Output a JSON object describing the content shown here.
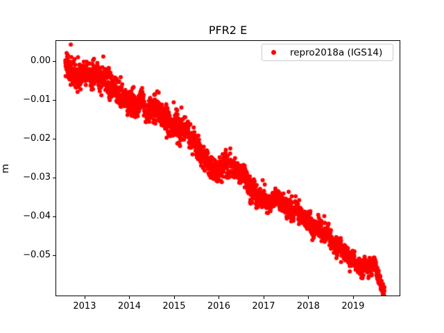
{
  "figure": {
    "background": "#ffffff"
  },
  "chart_data": {
    "type": "scatter",
    "title": "PFR2 E",
    "xlabel": "",
    "ylabel": "m",
    "grid": false,
    "xlim": [
      2012.35,
      2020.04
    ],
    "ylim": [
      -0.0603,
      0.0054
    ],
    "x_ticks": [
      2013,
      2014,
      2015,
      2016,
      2017,
      2018,
      2019
    ],
    "y_ticks": [
      0,
      -0.01,
      -0.02,
      -0.03,
      -0.04,
      -0.05
    ],
    "y_tick_labels": [
      "0.00",
      "−0.01",
      "−0.02",
      "−0.03",
      "−0.04",
      "−0.05"
    ],
    "legend": {
      "position": "upper right",
      "entries": [
        {
          "label": "repro2018a (IGS14)",
          "marker": "dot-marker",
          "color": "#ff0000"
        }
      ]
    },
    "series": [
      {
        "name": "repro2018a (IGS14)",
        "color": "#ff0000",
        "marker": "circle",
        "marker_diameter_px": 6,
        "x_start": 2012.57,
        "x_end": 2019.7,
        "n_points": 2400,
        "noise_sigma_start": 0.0018,
        "noise_sigma_end": 0.001,
        "seasonal_amplitude": 0.0006,
        "trend_x": [
          2012.57,
          2012.8,
          2013.0,
          2013.25,
          2013.5,
          2013.75,
          2014.0,
          2014.5,
          2015.0,
          2015.5,
          2016.0,
          2016.4,
          2016.8,
          2017.0,
          2017.5,
          2018.0,
          2018.3,
          2018.6,
          2019.0,
          2019.45,
          2019.7
        ],
        "trend_y": [
          -0.0006,
          -0.0016,
          -0.0022,
          -0.0035,
          -0.006,
          -0.0085,
          -0.0095,
          -0.0134,
          -0.017,
          -0.0212,
          -0.0258,
          -0.029,
          -0.032,
          -0.0343,
          -0.039,
          -0.042,
          -0.0455,
          -0.0485,
          -0.0508,
          -0.0539,
          -0.0565
        ]
      }
    ]
  }
}
